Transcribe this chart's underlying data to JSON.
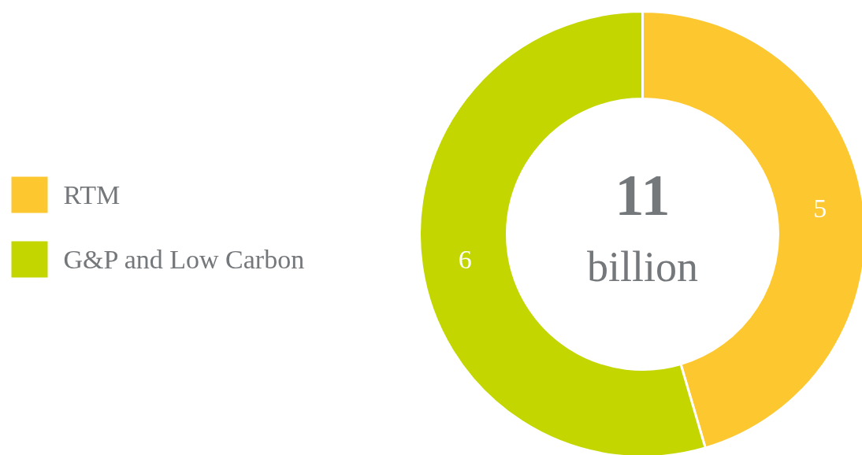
{
  "chart_data": {
    "type": "donut",
    "categories": [
      "RTM",
      "G&P and Low Carbon"
    ],
    "values": [
      5,
      6
    ],
    "colors": [
      "#fdc82f",
      "#c3d600"
    ],
    "data_labels": true,
    "legend": "left",
    "annotations": [
      "11",
      "billion"
    ]
  }
}
